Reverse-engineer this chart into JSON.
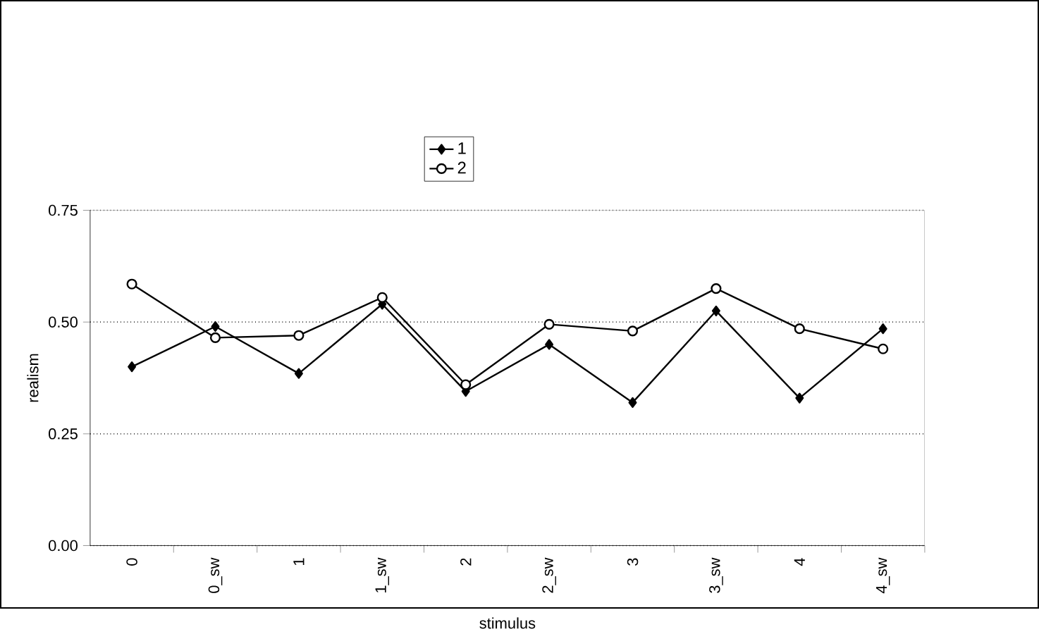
{
  "chart_data": {
    "type": "line",
    "xlabel": "stimulus",
    "ylabel": "realism",
    "categories": [
      "0",
      "0_sw",
      "1",
      "1_sw",
      "2",
      "2_sw",
      "3",
      "3_sw",
      "4",
      "4_sw"
    ],
    "series": [
      {
        "name": "1",
        "color": "#000000",
        "marker": "diamond",
        "values": [
          0.4,
          0.49,
          0.385,
          0.54,
          0.345,
          0.45,
          0.32,
          0.525,
          0.33,
          0.485
        ]
      },
      {
        "name": "2",
        "color": "#000000",
        "marker": "circle",
        "values": [
          0.585,
          0.465,
          0.47,
          0.555,
          0.36,
          0.495,
          0.48,
          0.575,
          0.485,
          0.44
        ]
      }
    ],
    "ylim": [
      0,
      0.75
    ],
    "yticks": [
      {
        "value": 0,
        "label": "0.00"
      },
      {
        "value": 0.25,
        "label": "0.25"
      },
      {
        "value": 0.5,
        "label": "0.50"
      },
      {
        "value": 0.75,
        "label": "0.75"
      }
    ],
    "grid": "y",
    "legend": "top",
    "line_style": "solid"
  }
}
